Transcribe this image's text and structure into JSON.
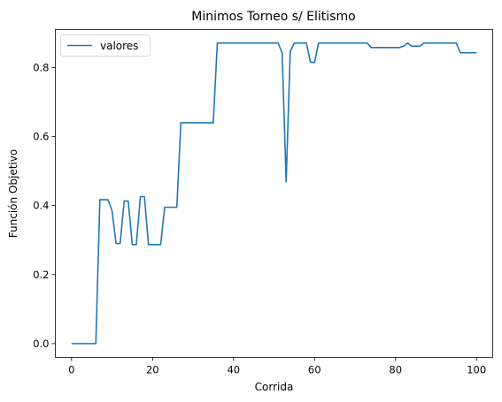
{
  "chart_data": {
    "type": "line",
    "title": "Minimos Torneo s/ Elitismo",
    "xlabel": "Corrida",
    "ylabel": "Función Objetivo",
    "xlim": [
      -4,
      104
    ],
    "ylim": [
      -0.04,
      0.91
    ],
    "xticks": [
      0,
      20,
      40,
      60,
      80,
      100
    ],
    "yticks": [
      0.0,
      0.2,
      0.4,
      0.6,
      0.8
    ],
    "xtick_labels": [
      "0",
      "20",
      "40",
      "60",
      "80",
      "100"
    ],
    "ytick_labels": [
      "0.0",
      "0.2",
      "0.4",
      "0.6",
      "0.8"
    ],
    "grid": false,
    "legend_position": "top-left",
    "series": [
      {
        "name": "valores",
        "color": "#1f77b4",
        "x": [
          0,
          1,
          2,
          3,
          4,
          5,
          6,
          7,
          8,
          9,
          10,
          11,
          12,
          13,
          14,
          15,
          16,
          17,
          18,
          19,
          20,
          21,
          22,
          23,
          24,
          25,
          26,
          27,
          28,
          29,
          30,
          31,
          32,
          33,
          34,
          35,
          36,
          37,
          38,
          39,
          40,
          41,
          42,
          43,
          44,
          45,
          46,
          47,
          48,
          49,
          50,
          51,
          52,
          53,
          54,
          55,
          56,
          57,
          58,
          59,
          60,
          61,
          62,
          63,
          64,
          65,
          66,
          67,
          68,
          69,
          70,
          71,
          72,
          73,
          74,
          75,
          76,
          77,
          78,
          79,
          80,
          81,
          82,
          83,
          84,
          85,
          86,
          87,
          88,
          89,
          90,
          91,
          92,
          93,
          94,
          95,
          96,
          97,
          98,
          99,
          100
        ],
        "values": [
          0,
          0,
          0,
          0,
          0,
          0,
          0,
          0.417,
          0.417,
          0.417,
          0.385,
          0.29,
          0.29,
          0.413,
          0.413,
          0.287,
          0.287,
          0.426,
          0.426,
          0.287,
          0.287,
          0.287,
          0.287,
          0.395,
          0.395,
          0.395,
          0.395,
          0.64,
          0.64,
          0.64,
          0.64,
          0.64,
          0.64,
          0.64,
          0.64,
          0.64,
          0.871,
          0.871,
          0.871,
          0.871,
          0.871,
          0.871,
          0.871,
          0.871,
          0.871,
          0.871,
          0.871,
          0.871,
          0.871,
          0.871,
          0.871,
          0.871,
          0.843,
          0.469,
          0.846,
          0.871,
          0.871,
          0.871,
          0.871,
          0.815,
          0.815,
          0.871,
          0.871,
          0.871,
          0.871,
          0.871,
          0.871,
          0.871,
          0.871,
          0.871,
          0.871,
          0.871,
          0.871,
          0.871,
          0.858,
          0.858,
          0.858,
          0.858,
          0.858,
          0.858,
          0.858,
          0.858,
          0.862,
          0.871,
          0.862,
          0.862,
          0.862,
          0.871,
          0.871,
          0.871,
          0.871,
          0.871,
          0.871,
          0.871,
          0.871,
          0.871,
          0.843,
          0.843,
          0.843,
          0.843,
          0.843
        ]
      }
    ]
  }
}
